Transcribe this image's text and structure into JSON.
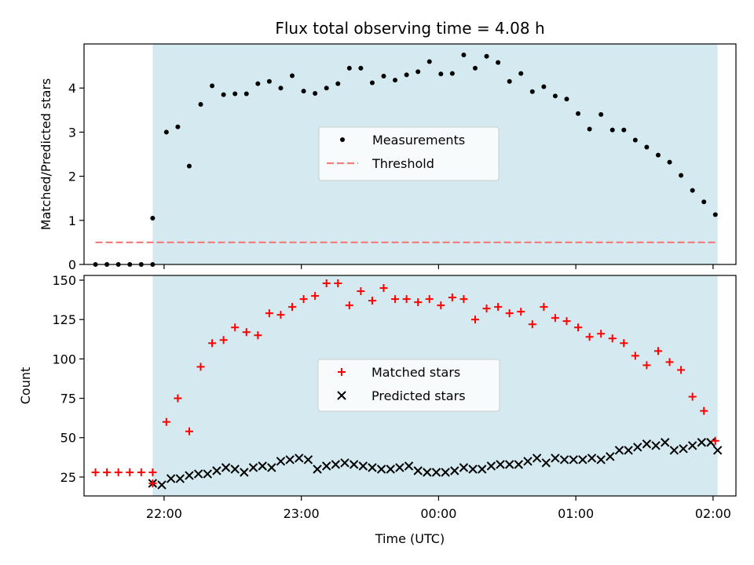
{
  "title": "Flux total observing time = 4.08 h",
  "xlabel": "Time (UTC)",
  "x_ticks": [
    "22:00",
    "23:00",
    "00:00",
    "01:00",
    "02:00"
  ],
  "colors": {
    "shade": "#d4eaf0",
    "threshold": "#f08080",
    "matched": "#ff0000",
    "predicted": "#000000"
  },
  "chart_data": [
    {
      "type": "scatter",
      "ylabel": "Matched/Predicted stars",
      "ylim": [
        0,
        5
      ],
      "yticks": [
        0,
        1,
        2,
        3,
        4
      ],
      "xlim": [
        "21:25",
        "02:10"
      ],
      "shaded_span": [
        "21:55",
        "02:02"
      ],
      "threshold": {
        "name": "Threshold",
        "y": 0.5,
        "x_range": [
          "21:30",
          "02:02"
        ]
      },
      "legend_location": "center",
      "series": [
        {
          "name": "Measurements",
          "x": [
            "21:30",
            "21:35",
            "21:40",
            "21:45",
            "21:50",
            "21:55",
            "21:55",
            "22:01",
            "22:06",
            "22:11",
            "22:16",
            "22:21",
            "22:26",
            "22:31",
            "22:36",
            "22:41",
            "22:46",
            "22:51",
            "22:56",
            "23:01",
            "23:06",
            "23:11",
            "23:16",
            "23:21",
            "23:26",
            "23:31",
            "23:36",
            "23:41",
            "23:46",
            "23:51",
            "23:56",
            "00:01",
            "00:06",
            "00:11",
            "00:16",
            "00:21",
            "00:26",
            "00:31",
            "00:36",
            "00:41",
            "00:46",
            "00:51",
            "00:56",
            "01:01",
            "01:06",
            "01:11",
            "01:16",
            "01:21",
            "01:26",
            "01:31",
            "01:36",
            "01:41",
            "01:46",
            "01:51",
            "01:56",
            "02:01"
          ],
          "y": [
            0,
            0,
            0,
            0,
            0,
            0,
            1.05,
            3.0,
            3.12,
            2.23,
            3.63,
            4.05,
            3.85,
            3.87,
            3.87,
            4.1,
            4.15,
            4.0,
            4.28,
            3.93,
            3.88,
            4.0,
            4.1,
            4.45,
            4.45,
            4.12,
            4.27,
            4.18,
            4.3,
            4.37,
            4.6,
            4.32,
            4.33,
            4.75,
            4.45,
            4.72,
            4.58,
            4.15,
            4.33,
            3.92,
            4.03,
            3.82,
            3.75,
            3.42,
            3.07,
            3.4,
            3.05,
            3.05,
            2.82,
            2.66,
            2.48,
            2.32,
            2.02,
            1.68,
            1.42,
            1.13
          ]
        }
      ]
    },
    {
      "type": "scatter",
      "ylabel": "Count",
      "ylim": [
        13,
        153
      ],
      "yticks": [
        25,
        50,
        75,
        100,
        125,
        150
      ],
      "xlim": [
        "21:25",
        "02:10"
      ],
      "shaded_span": [
        "21:55",
        "02:02"
      ],
      "legend_location": "center",
      "series": [
        {
          "name": "Matched stars",
          "marker": "+",
          "x": [
            "21:30",
            "21:35",
            "21:40",
            "21:45",
            "21:50",
            "21:55",
            "21:55",
            "22:01",
            "22:06",
            "22:11",
            "22:16",
            "22:21",
            "22:26",
            "22:31",
            "22:36",
            "22:41",
            "22:46",
            "22:51",
            "22:56",
            "23:01",
            "23:06",
            "23:11",
            "23:16",
            "23:21",
            "23:26",
            "23:31",
            "23:36",
            "23:41",
            "23:46",
            "23:51",
            "23:56",
            "00:01",
            "00:06",
            "00:11",
            "00:16",
            "00:21",
            "00:26",
            "00:31",
            "00:36",
            "00:41",
            "00:46",
            "00:51",
            "00:56",
            "01:01",
            "01:06",
            "01:11",
            "01:16",
            "01:21",
            "01:26",
            "01:31",
            "01:36",
            "01:41",
            "01:46",
            "01:51",
            "01:56",
            "02:01"
          ],
          "y": [
            28,
            28,
            28,
            28,
            28,
            28,
            21,
            60,
            75,
            54,
            95,
            110,
            112,
            120,
            117,
            115,
            129,
            128,
            133,
            138,
            140,
            148,
            148,
            134,
            143,
            137,
            145,
            138,
            138,
            136,
            138,
            134,
            139,
            138,
            125,
            132,
            133,
            129,
            130,
            122,
            133,
            126,
            124,
            120,
            114,
            116,
            113,
            110,
            102,
            96,
            105,
            98,
            93,
            76,
            67,
            48
          ]
        },
        {
          "name": "Predicted stars",
          "marker": "x",
          "x": [
            "21:55",
            "21:59",
            "22:03",
            "22:07",
            "22:11",
            "22:15",
            "22:19",
            "22:23",
            "22:27",
            "22:31",
            "22:35",
            "22:39",
            "22:43",
            "22:47",
            "22:51",
            "22:55",
            "22:59",
            "23:03",
            "23:07",
            "23:11",
            "23:15",
            "23:19",
            "23:23",
            "23:27",
            "23:31",
            "23:35",
            "23:39",
            "23:43",
            "23:47",
            "23:51",
            "23:55",
            "23:59",
            "00:03",
            "00:07",
            "00:11",
            "00:15",
            "00:19",
            "00:23",
            "00:27",
            "00:31",
            "00:35",
            "00:39",
            "00:43",
            "00:47",
            "00:51",
            "00:55",
            "00:59",
            "01:03",
            "01:07",
            "01:11",
            "01:15",
            "01:19",
            "01:23",
            "01:27",
            "01:31",
            "01:35",
            "01:39",
            "01:43",
            "01:47",
            "01:51",
            "01:55",
            "01:59",
            "02:02"
          ],
          "y": [
            21,
            20,
            24,
            24,
            26,
            27,
            27,
            29,
            31,
            30,
            28,
            31,
            32,
            31,
            35,
            36,
            37,
            36,
            30,
            32,
            33,
            34,
            33,
            32,
            31,
            30,
            30,
            31,
            32,
            29,
            28,
            28,
            28,
            29,
            31,
            30,
            30,
            32,
            33,
            33,
            33,
            35,
            37,
            34,
            37,
            36,
            36,
            36,
            37,
            36,
            38,
            42,
            42,
            44,
            46,
            45,
            47,
            42,
            43,
            45,
            47,
            47,
            42
          ]
        }
      ]
    }
  ]
}
